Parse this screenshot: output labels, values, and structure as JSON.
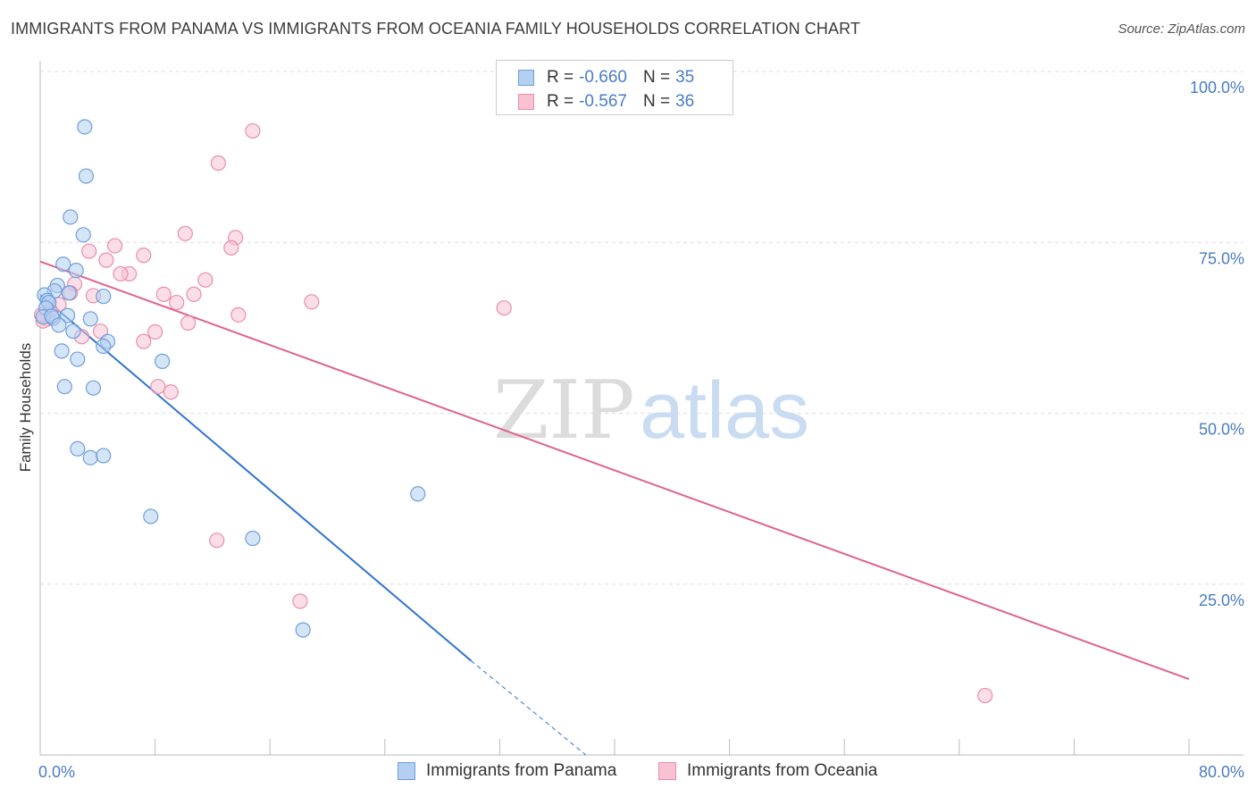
{
  "header": {
    "title": "IMMIGRANTS FROM PANAMA VS IMMIGRANTS FROM OCEANIA FAMILY HOUSEHOLDS CORRELATION CHART",
    "source": "Source: ZipAtlas.com"
  },
  "watermark": {
    "zip": "ZIP",
    "atlas": "atlas"
  },
  "legend_top": {
    "rows": [
      {
        "r_label": "R =",
        "r_value": "-0.660",
        "n_label": "N =",
        "n_value": "35"
      },
      {
        "r_label": "R =",
        "r_value": "-0.567",
        "n_label": "N =",
        "n_value": "36"
      }
    ]
  },
  "legend_bottom": {
    "items": [
      {
        "label": "Immigrants from Panama"
      },
      {
        "label": "Immigrants from Oceania"
      }
    ]
  },
  "colors": {
    "panama_fill": "#b3cff2",
    "panama_stroke": "#6f9fda",
    "panama_line": "#2f74d0",
    "oceania_fill": "#f8c2d3",
    "oceania_stroke": "#e98eab",
    "oceania_line": "#e0628e",
    "grid": "#dddddd",
    "tick_text": "#4a7cc4"
  },
  "chart_data": {
    "type": "scatter",
    "title": "IMMIGRANTS FROM PANAMA VS IMMIGRANTS FROM OCEANIA FAMILY HOUSEHOLDS CORRELATION CHART",
    "xlabel": "",
    "ylabel": "Family Households",
    "xlim": [
      0,
      80
    ],
    "ylim": [
      0,
      105
    ],
    "x_tick_labels": [
      "0.0%",
      "80.0%"
    ],
    "y_ticks": [
      25,
      50,
      75,
      100
    ],
    "y_tick_labels": [
      "25.0%",
      "50.0%",
      "75.0%",
      "100.0%"
    ],
    "grid": true,
    "legend_position": "bottom",
    "series": [
      {
        "name": "Immigrants from Panama",
        "r": -0.66,
        "n": 35,
        "points": [
          [
            3.1,
            91.9
          ],
          [
            3.2,
            84.7
          ],
          [
            2.1,
            78.7
          ],
          [
            3.0,
            76.1
          ],
          [
            1.6,
            71.8
          ],
          [
            2.5,
            70.9
          ],
          [
            1.2,
            68.7
          ],
          [
            1.0,
            67.9
          ],
          [
            2.0,
            67.6
          ],
          [
            4.4,
            67.1
          ],
          [
            0.3,
            67.3
          ],
          [
            0.5,
            66.5
          ],
          [
            0.6,
            66.2
          ],
          [
            0.4,
            65.4
          ],
          [
            0.2,
            64.1
          ],
          [
            0.9,
            63.9
          ],
          [
            0.8,
            64.2
          ],
          [
            1.9,
            64.3
          ],
          [
            3.5,
            63.8
          ],
          [
            1.3,
            62.9
          ],
          [
            2.3,
            62.0
          ],
          [
            4.7,
            60.5
          ],
          [
            4.4,
            59.8
          ],
          [
            1.5,
            59.1
          ],
          [
            2.6,
            57.9
          ],
          [
            8.5,
            57.6
          ],
          [
            1.7,
            53.9
          ],
          [
            3.7,
            53.7
          ],
          [
            2.6,
            44.8
          ],
          [
            3.5,
            43.5
          ],
          [
            4.4,
            43.8
          ],
          [
            7.7,
            34.9
          ],
          [
            14.8,
            31.7
          ],
          [
            26.3,
            38.2
          ],
          [
            18.3,
            18.3
          ]
        ],
        "trend": {
          "x": [
            0,
            30
          ],
          "y": [
            67.3,
            13.8
          ]
        },
        "trend_extension": {
          "x": [
            30,
            38
          ],
          "y": [
            13.8,
            -0.5
          ]
        }
      },
      {
        "name": "Immigrants from Oceania",
        "r": -0.567,
        "n": 36,
        "points": [
          [
            14.8,
            91.3
          ],
          [
            12.4,
            86.6
          ],
          [
            10.1,
            76.3
          ],
          [
            13.6,
            75.7
          ],
          [
            13.3,
            74.2
          ],
          [
            5.2,
            74.5
          ],
          [
            3.4,
            73.7
          ],
          [
            7.2,
            73.1
          ],
          [
            4.6,
            72.4
          ],
          [
            6.2,
            70.4
          ],
          [
            5.6,
            70.4
          ],
          [
            11.5,
            69.5
          ],
          [
            2.4,
            68.9
          ],
          [
            2.1,
            67.6
          ],
          [
            8.6,
            67.4
          ],
          [
            10.7,
            67.4
          ],
          [
            3.7,
            67.2
          ],
          [
            9.5,
            66.2
          ],
          [
            18.9,
            66.3
          ],
          [
            1.3,
            65.9
          ],
          [
            32.3,
            65.4
          ],
          [
            0.7,
            65.0
          ],
          [
            13.8,
            64.4
          ],
          [
            0.5,
            63.8
          ],
          [
            10.3,
            63.2
          ],
          [
            0.2,
            63.5
          ],
          [
            4.2,
            62.0
          ],
          [
            8.0,
            61.9
          ],
          [
            2.9,
            61.2
          ],
          [
            7.2,
            60.5
          ],
          [
            8.2,
            53.9
          ],
          [
            9.1,
            53.1
          ],
          [
            12.3,
            31.4
          ],
          [
            18.1,
            22.5
          ],
          [
            65.8,
            8.7
          ],
          [
            0.1,
            64.4
          ]
        ],
        "trend": {
          "x": [
            0,
            80
          ],
          "y": [
            72.2,
            11.1
          ]
        }
      }
    ]
  }
}
